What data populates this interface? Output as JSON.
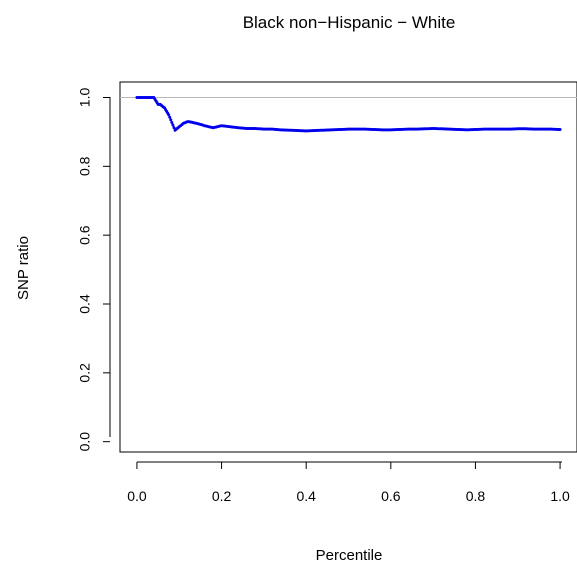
{
  "chart_data": {
    "type": "scatter",
    "title": "Black non−Hispanic − White",
    "xlabel": "Percentile",
    "ylabel": "SNP ratio",
    "xlim": [
      -0.04,
      1.04
    ],
    "ylim": [
      -0.03,
      1.045
    ],
    "x_ticks": [
      0.0,
      0.2,
      0.4,
      0.6,
      0.8,
      1.0
    ],
    "x_tick_labels": [
      "0.0",
      "0.2",
      "0.4",
      "0.6",
      "0.8",
      "1.0"
    ],
    "y_ticks": [
      0.0,
      0.2,
      0.4,
      0.6,
      0.8,
      1.0
    ],
    "y_tick_labels": [
      "0.0",
      "0.2",
      "0.4",
      "0.6",
      "0.8",
      "1.0"
    ],
    "reference_line": 1.0,
    "grid": false,
    "point_color": "#0000ee",
    "reference_line_color": "#b8b8b8",
    "x": [
      0.0,
      0.01,
      0.02,
      0.03,
      0.04,
      0.045,
      0.05,
      0.055,
      0.06,
      0.065,
      0.07,
      0.075,
      0.08,
      0.085,
      0.09,
      0.095,
      0.1,
      0.11,
      0.12,
      0.13,
      0.14,
      0.15,
      0.16,
      0.17,
      0.18,
      0.19,
      0.2,
      0.22,
      0.24,
      0.26,
      0.28,
      0.3,
      0.32,
      0.34,
      0.36,
      0.38,
      0.4,
      0.42,
      0.44,
      0.46,
      0.48,
      0.5,
      0.52,
      0.54,
      0.56,
      0.58,
      0.6,
      0.62,
      0.64,
      0.66,
      0.68,
      0.7,
      0.72,
      0.74,
      0.76,
      0.78,
      0.8,
      0.82,
      0.84,
      0.86,
      0.88,
      0.9,
      0.92,
      0.94,
      0.96,
      0.98,
      1.0
    ],
    "values": [
      1.0,
      1.0,
      1.0,
      1.0,
      1.0,
      0.99,
      0.98,
      0.98,
      0.975,
      0.97,
      0.96,
      0.95,
      0.935,
      0.92,
      0.905,
      0.91,
      0.915,
      0.925,
      0.93,
      0.928,
      0.925,
      0.922,
      0.918,
      0.915,
      0.912,
      0.915,
      0.918,
      0.915,
      0.912,
      0.91,
      0.91,
      0.908,
      0.908,
      0.906,
      0.905,
      0.904,
      0.903,
      0.904,
      0.905,
      0.906,
      0.907,
      0.908,
      0.908,
      0.908,
      0.907,
      0.906,
      0.906,
      0.907,
      0.908,
      0.908,
      0.909,
      0.91,
      0.909,
      0.908,
      0.907,
      0.906,
      0.907,
      0.908,
      0.908,
      0.908,
      0.908,
      0.909,
      0.909,
      0.908,
      0.908,
      0.908,
      0.907
    ]
  }
}
